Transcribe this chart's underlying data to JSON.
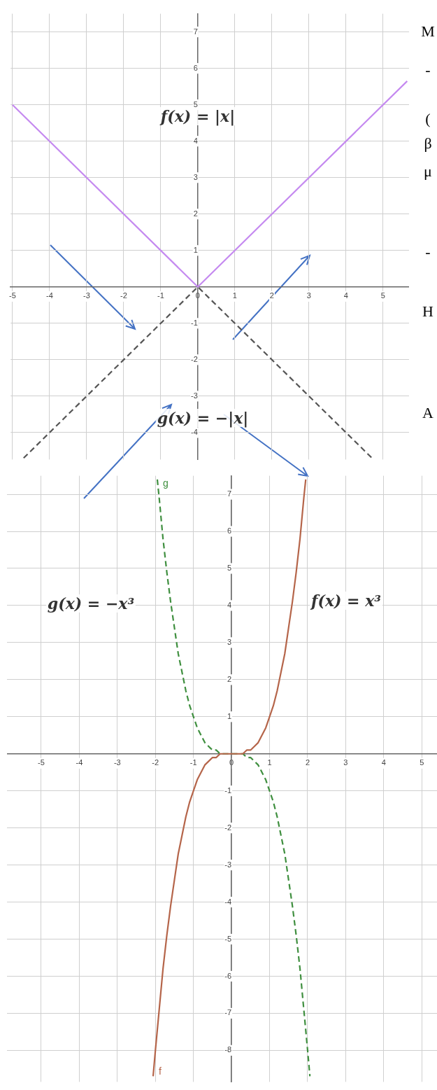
{
  "chart_data": [
    {
      "type": "line",
      "xlim": [
        -5.05,
        5.7
      ],
      "ylim": [
        -4.74,
        7.5
      ],
      "xticks": [
        -5,
        -4,
        -3,
        -2,
        -1,
        0,
        1,
        2,
        3,
        4,
        5
      ],
      "yticks": [
        -4,
        -3,
        -2,
        -1,
        1,
        2,
        3,
        4,
        5,
        6,
        7
      ],
      "grid": true,
      "legend": false,
      "marker": "none",
      "series": [
        {
          "color": "#c58af0",
          "line_style": "solid",
          "x": [
            -5,
            0,
            5.65
          ],
          "values": [
            5,
            0,
            5.65
          ]
        },
        {
          "color": "#555555",
          "line_style": "dashed",
          "x": [
            -4.7,
            0,
            4.7
          ],
          "values": [
            -4.7,
            0,
            -4.7
          ]
        }
      ],
      "annotations": [
        "f(x) = |x|",
        "g(x) = −|x|",
        "M",
        "-",
        "(",
        "β",
        "μ",
        "-",
        "H",
        "A"
      ]
    },
    {
      "type": "line",
      "xlim": [
        -5.9,
        5.4
      ],
      "ylim": [
        -8.85,
        7.5
      ],
      "xticks": [
        -5,
        -4,
        -3,
        -2,
        -1,
        0,
        1,
        2,
        3,
        4,
        5
      ],
      "yticks": [
        -8,
        -7,
        -6,
        -5,
        -4,
        -3,
        -2,
        -1,
        1,
        2,
        3,
        4,
        5,
        6,
        7
      ],
      "grid": true,
      "legend": false,
      "marker": "none",
      "series": [
        {
          "name": "f",
          "color": "#b5654a",
          "line_style": "solid",
          "x": [
            -2.06,
            -2,
            -1.9,
            -1.8,
            -1.7,
            -1.6,
            -1.5,
            -1.4,
            -1.3,
            -1.2,
            -1.1,
            -1,
            -0.9,
            -0.8,
            -0.7,
            -0.6,
            -0.5,
            -0.4,
            -0.3,
            -0.2,
            -0.1,
            0,
            0.1,
            0.2,
            0.3,
            0.4,
            0.5,
            0.6,
            0.7,
            0.8,
            0.9,
            1,
            1.1,
            1.2,
            1.3,
            1.4,
            1.5,
            1.6,
            1.7,
            1.8,
            1.9,
            1.95
          ],
          "values": [
            -8.7,
            -8,
            -6.9,
            -5.8,
            -4.9,
            -4.1,
            -3.4,
            -2.7,
            -2.2,
            -1.7,
            -1.3,
            -1,
            -0.7,
            -0.5,
            -0.3,
            -0.2,
            -0.1,
            -0.1,
            0,
            0,
            0,
            0,
            0,
            0,
            0,
            0.1,
            0.1,
            0.2,
            0.3,
            0.5,
            0.7,
            1,
            1.3,
            1.7,
            2.2,
            2.7,
            3.4,
            4.1,
            4.9,
            5.8,
            6.9,
            7.4
          ]
        },
        {
          "name": "g",
          "color": "#3f8f3f",
          "line_style": "dashed",
          "x": [
            -1.95,
            -1.9,
            -1.8,
            -1.7,
            -1.6,
            -1.5,
            -1.4,
            -1.3,
            -1.2,
            -1.1,
            -1,
            -0.9,
            -0.8,
            -0.7,
            -0.6,
            -0.5,
            -0.4,
            -0.3,
            -0.2,
            -0.1,
            0,
            0.1,
            0.2,
            0.3,
            0.4,
            0.5,
            0.6,
            0.7,
            0.8,
            0.9,
            1,
            1.1,
            1.2,
            1.3,
            1.4,
            1.5,
            1.6,
            1.7,
            1.8,
            1.9,
            2,
            2.06
          ],
          "values": [
            7.4,
            6.9,
            5.8,
            4.9,
            4.1,
            3.4,
            2.7,
            2.2,
            1.7,
            1.3,
            1,
            0.7,
            0.5,
            0.3,
            0.2,
            0.1,
            0.1,
            0,
            0,
            0,
            0,
            0,
            0,
            0,
            -0.1,
            -0.1,
            -0.2,
            -0.3,
            -0.5,
            -0.7,
            -1,
            -1.3,
            -1.7,
            -2.2,
            -2.7,
            -3.4,
            -4.1,
            -4.9,
            -5.8,
            -6.9,
            -8,
            -8.7
          ]
        }
      ],
      "annotations": [
        "g(x) = −x³",
        "f(x) = x³"
      ]
    }
  ]
}
